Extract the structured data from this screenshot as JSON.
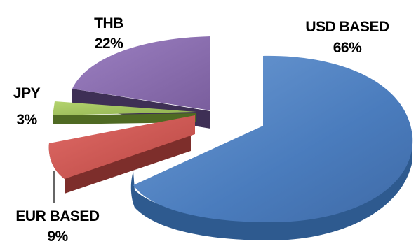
{
  "chart_data": {
    "type": "pie",
    "style": "3d-exploded",
    "title": "",
    "legend": "none",
    "slices": [
      {
        "name": "USD BASED",
        "value": 66,
        "label": "66%",
        "color": "#4f81bd"
      },
      {
        "name": "EUR BASED",
        "value": 9,
        "label": "9%",
        "color": "#c0504d"
      },
      {
        "name": "JPY",
        "value": 3,
        "label": "3%",
        "color": "#9bbb59"
      },
      {
        "name": "THB",
        "value": 22,
        "label": "22%",
        "color": "#8064a2"
      }
    ]
  }
}
